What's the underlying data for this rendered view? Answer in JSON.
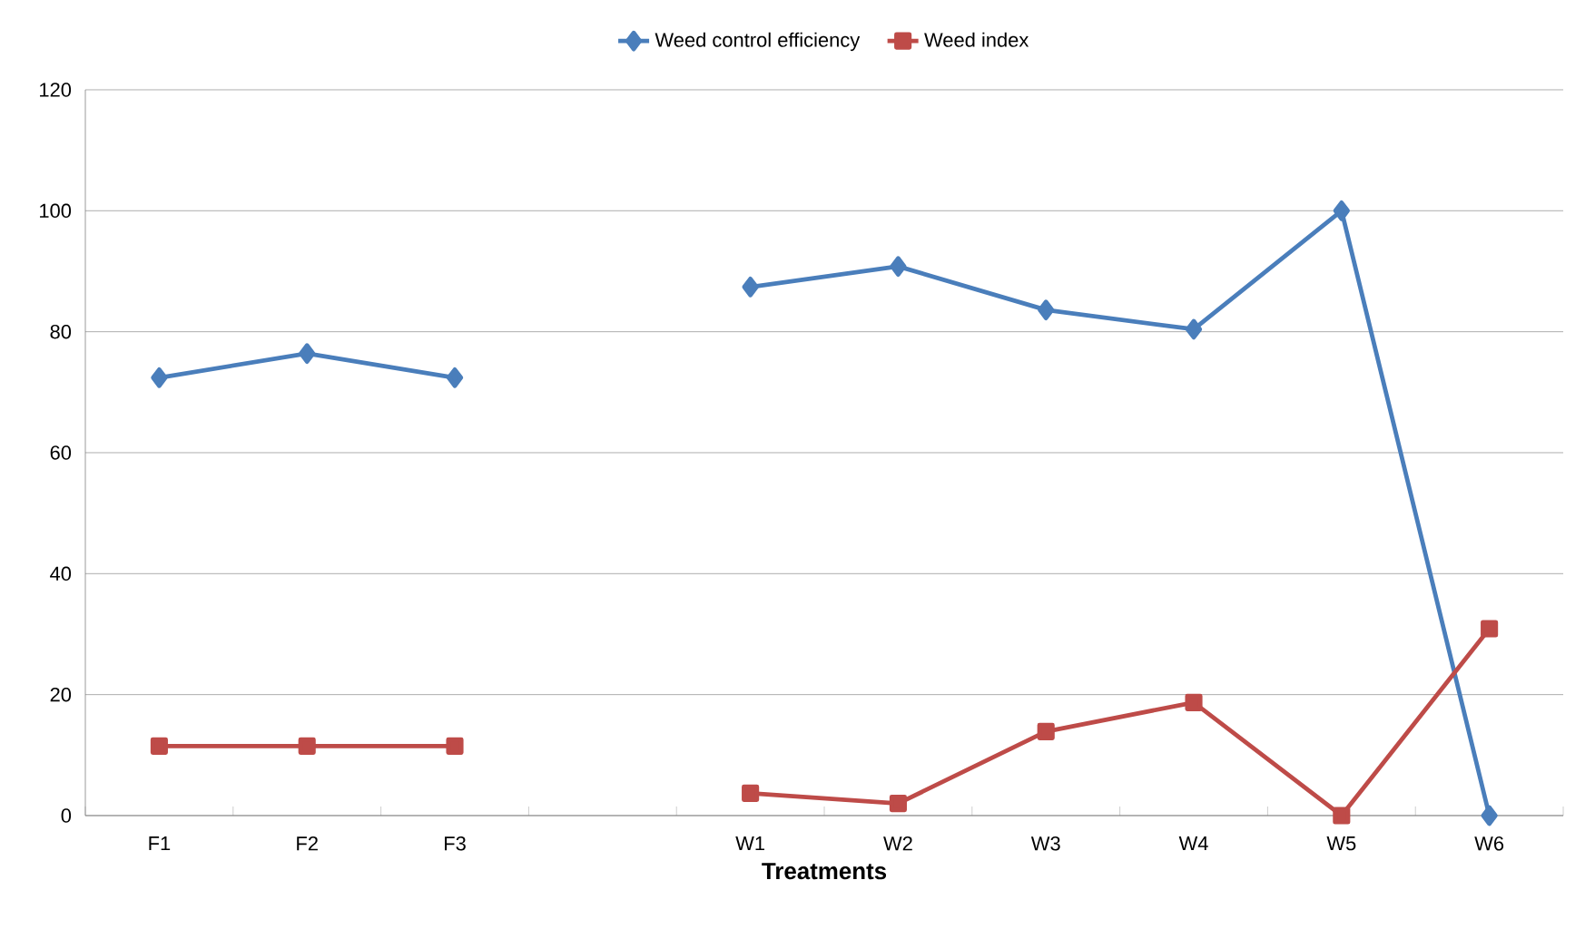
{
  "chart_data": {
    "type": "line",
    "xlabel": "Treatments",
    "categories": [
      "F1",
      "F2",
      "F3",
      null,
      "W1",
      "W2",
      "W3",
      "W4",
      "W5",
      "W6"
    ],
    "series": [
      {
        "name": "Weed control efficiency",
        "color": "#4a7ebb",
        "marker": "diamond",
        "values": [
          72.4,
          76.4,
          72.4,
          null,
          87.4,
          90.8,
          83.6,
          80.4,
          100,
          0
        ]
      },
      {
        "name": "Weed index",
        "color": "#be4b48",
        "marker": "square",
        "values": [
          11.5,
          11.5,
          11.5,
          null,
          3.7,
          2.0,
          13.9,
          18.7,
          0,
          30.9
        ]
      }
    ],
    "ylim": [
      0,
      120
    ],
    "yticks": [
      0,
      20,
      40,
      60,
      80,
      100,
      120
    ],
    "grid": "y",
    "legend": "top"
  }
}
